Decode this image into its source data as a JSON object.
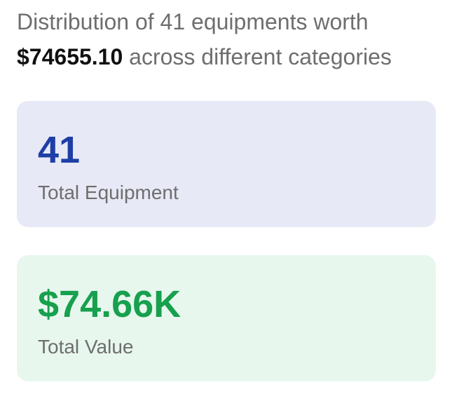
{
  "summary": {
    "text_before": "Distribution of 41 equipments worth",
    "amount": "$74655.10",
    "text_after": "across different categories"
  },
  "cards": [
    {
      "value": "41",
      "label": "Total Equipment"
    },
    {
      "value": "$74.66K",
      "label": "Total Value"
    }
  ]
}
